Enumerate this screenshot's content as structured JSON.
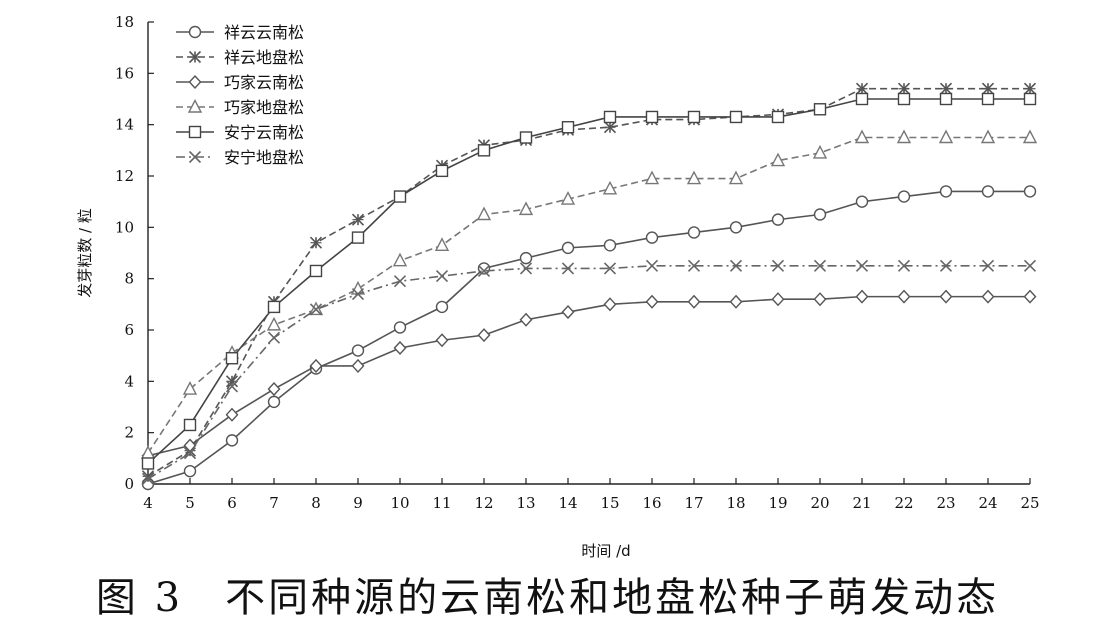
{
  "chart_data": {
    "type": "line",
    "title": "",
    "xlabel": "时间 /d",
    "ylabel": "发芽粒数 / 粒",
    "xlim": [
      4,
      25
    ],
    "ylim": [
      0,
      18
    ],
    "x_ticks": [
      "4",
      "5",
      "6",
      "7",
      "8",
      "9",
      "10",
      "11",
      "12",
      "13",
      "14",
      "15",
      "16",
      "17",
      "18",
      "19",
      "20",
      "21",
      "22",
      "23",
      "24",
      "25"
    ],
    "y_ticks": [
      "0",
      "2",
      "4",
      "6",
      "8",
      "10",
      "12",
      "14",
      "16",
      "18"
    ],
    "x": [
      4,
      5,
      6,
      7,
      8,
      9,
      10,
      11,
      12,
      13,
      14,
      15,
      16,
      17,
      18,
      19,
      20,
      21,
      22,
      23,
      24,
      25
    ],
    "grid": false,
    "legend_position": "top-left",
    "series": [
      {
        "name": "祥云云南松",
        "marker": "circle",
        "dash": "solid",
        "color": "#555555",
        "values": [
          0,
          0.5,
          1.7,
          3.2,
          4.5,
          5.2,
          6.1,
          6.9,
          8.4,
          8.8,
          9.2,
          9.3,
          9.6,
          9.8,
          10.0,
          10.3,
          10.5,
          11.0,
          11.2,
          11.4,
          11.4,
          11.4
        ]
      },
      {
        "name": "祥云地盘松",
        "marker": "star",
        "dash": "dashed",
        "color": "#555555",
        "values": [
          0.3,
          1.3,
          4.0,
          7.1,
          9.4,
          10.3,
          11.2,
          12.4,
          13.2,
          13.4,
          13.8,
          13.9,
          14.2,
          14.2,
          14.3,
          14.4,
          14.6,
          15.4,
          15.4,
          15.4,
          15.4,
          15.4
        ]
      },
      {
        "name": "巧家云南松",
        "marker": "diamond",
        "dash": "solid",
        "color": "#555555",
        "values": [
          1.1,
          1.5,
          2.7,
          3.7,
          4.6,
          4.6,
          5.3,
          5.6,
          5.8,
          6.4,
          6.7,
          7.0,
          7.1,
          7.1,
          7.1,
          7.2,
          7.2,
          7.3,
          7.3,
          7.3,
          7.3,
          7.3
        ]
      },
      {
        "name": "巧家地盘松",
        "marker": "triangle",
        "dash": "dashed",
        "color": "#777777",
        "values": [
          1.2,
          3.7,
          5.1,
          6.2,
          6.8,
          7.6,
          8.7,
          9.3,
          10.5,
          10.7,
          11.1,
          11.5,
          11.9,
          11.9,
          11.9,
          12.6,
          12.9,
          13.5,
          13.5,
          13.5,
          13.5,
          13.5
        ]
      },
      {
        "name": "安宁云南松",
        "marker": "square",
        "dash": "solid",
        "color": "#444444",
        "values": [
          0.8,
          2.3,
          4.9,
          6.9,
          8.3,
          9.6,
          11.2,
          12.2,
          13.0,
          13.5,
          13.9,
          14.3,
          14.3,
          14.3,
          14.3,
          14.3,
          14.6,
          15.0,
          15.0,
          15.0,
          15.0,
          15.0
        ]
      },
      {
        "name": "安宁地盘松",
        "marker": "x",
        "dash": "dashdot",
        "color": "#666666",
        "values": [
          0.2,
          1.2,
          3.8,
          5.7,
          6.8,
          7.4,
          7.9,
          8.1,
          8.3,
          8.4,
          8.4,
          8.4,
          8.5,
          8.5,
          8.5,
          8.5,
          8.5,
          8.5,
          8.5,
          8.5,
          8.5,
          8.5
        ]
      }
    ]
  },
  "caption": {
    "figure_number": "图 3",
    "text": "不同种源的云南松和地盘松种子萌发动态"
  }
}
